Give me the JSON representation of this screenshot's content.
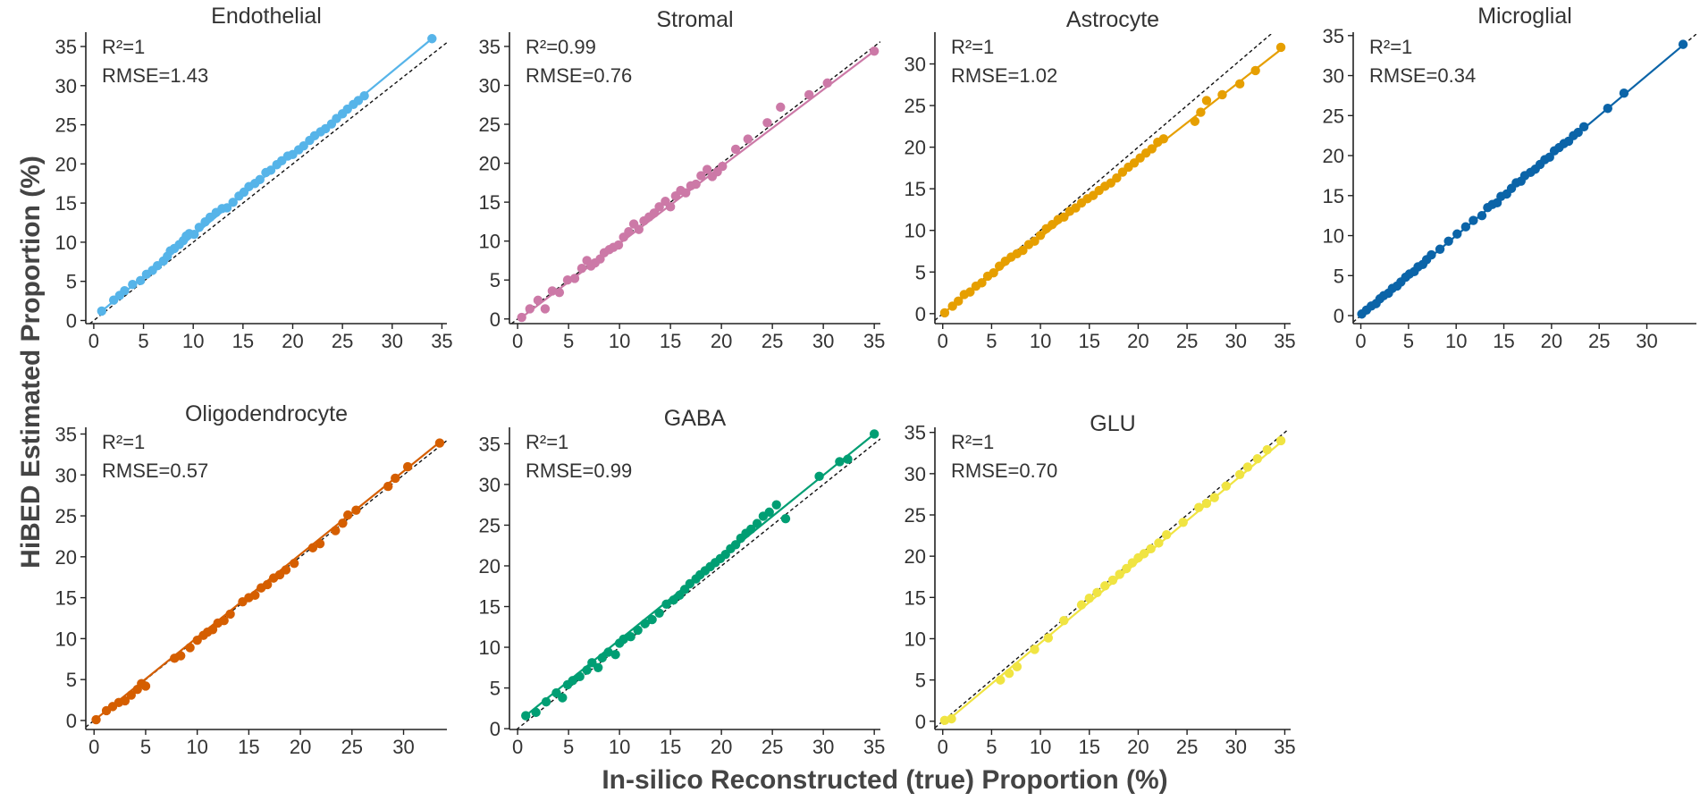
{
  "figure": {
    "ylabel": "HiBED Estimated Proportion (%)",
    "xlabel": "In-silico Reconstructed (true) Proportion (%)"
  },
  "chart_data": [
    {
      "type": "scatter",
      "title": "Endothelial",
      "color": "#56B4E9",
      "r2": "R²=1",
      "rmse": "RMSE=1.43",
      "xlim": [
        0,
        35
      ],
      "ylim": [
        0,
        35
      ],
      "xticks": [
        0,
        5,
        10,
        15,
        20,
        25,
        30,
        35
      ],
      "yticks": [
        0,
        5,
        10,
        15,
        20,
        25,
        30,
        35
      ],
      "fit": [
        [
          0.8,
          1.2
        ],
        [
          34,
          36
        ]
      ],
      "x": [
        0.8,
        2,
        2.6,
        3.1,
        3.9,
        4.7,
        5.3,
        5.9,
        6.4,
        7,
        7.4,
        7.7,
        8.1,
        8.6,
        9,
        9.3,
        9.6,
        10.1,
        10.6,
        11.2,
        11.7,
        12.3,
        12.9,
        13.4,
        14,
        14.6,
        15.1,
        15.6,
        16.2,
        16.7,
        17.3,
        17.8,
        18.4,
        18.9,
        19.5,
        20,
        20.6,
        21.1,
        21.7,
        22.2,
        22.8,
        23.3,
        23.9,
        24.4,
        25,
        25.5,
        26.1,
        26.6,
        27.2,
        34
      ],
      "y": [
        1.2,
        2.6,
        3.2,
        3.8,
        4.6,
        5.1,
        5.9,
        6.4,
        7,
        7.6,
        8.2,
        8.9,
        9.2,
        9.7,
        10.2,
        10.8,
        11.1,
        11,
        11.9,
        12.6,
        13.2,
        13.8,
        14.3,
        14.4,
        15.1,
        15.9,
        16.4,
        17.1,
        17.5,
        18,
        18.9,
        19.2,
        19.9,
        20.4,
        21,
        21.2,
        21.8,
        22.3,
        23,
        23.6,
        24.1,
        24.5,
        25.1,
        25.8,
        26.4,
        27,
        27.6,
        28.1,
        28.7,
        36
      ]
    },
    {
      "type": "scatter",
      "title": "Stromal",
      "color": "#CC79A7",
      "r2": "R²=0.99",
      "rmse": "RMSE=0.76",
      "xlim": [
        0,
        35
      ],
      "ylim": [
        0,
        35
      ],
      "xticks": [
        0,
        5,
        10,
        15,
        20,
        25,
        30,
        35
      ],
      "yticks": [
        0,
        5,
        10,
        15,
        20,
        25,
        30,
        35
      ],
      "fit": [
        [
          0.3,
          0.1
        ],
        [
          35,
          34.4
        ]
      ],
      "x": [
        0.4,
        1.2,
        2,
        2.7,
        3.4,
        4.1,
        4.9,
        5.6,
        6.3,
        6.8,
        7.2,
        7.6,
        8.1,
        8.5,
        9,
        9.4,
        9.9,
        10.4,
        10.9,
        11.4,
        11.9,
        12.4,
        12.9,
        13.4,
        13.9,
        14.5,
        15,
        15.5,
        16,
        16.5,
        17,
        17.5,
        18,
        18.6,
        19.1,
        19.6,
        20.1,
        21.4,
        22.6,
        24.5,
        25.8,
        28.6,
        30.4,
        35
      ],
      "y": [
        0.2,
        1.3,
        2.4,
        1.3,
        3.6,
        3.4,
        5,
        5.2,
        6.5,
        7.5,
        6.8,
        7.2,
        7.7,
        8.5,
        8.9,
        9.2,
        9.5,
        10.5,
        11.2,
        12.2,
        11.5,
        12.6,
        13.1,
        13.6,
        14.4,
        15.1,
        14.4,
        15.8,
        16.5,
        16.2,
        17.1,
        17.3,
        18.4,
        19.2,
        18.3,
        18.9,
        19.6,
        21.8,
        23.1,
        25.2,
        27.2,
        28.8,
        30.3,
        34.4
      ]
    },
    {
      "type": "scatter",
      "title": "Astrocyte",
      "color": "#E69F00",
      "r2": "R²=1",
      "rmse": "RMSE=1.02",
      "xlim": [
        0,
        35
      ],
      "ylim": [
        0,
        32
      ],
      "xticks": [
        0,
        5,
        10,
        15,
        20,
        25,
        30,
        35
      ],
      "yticks": [
        0,
        5,
        10,
        15,
        20,
        25,
        30
      ],
      "fit": [
        [
          0,
          0
        ],
        [
          35,
          32.1
        ]
      ],
      "x": [
        0.2,
        1,
        1.6,
        2.2,
        2.8,
        3.4,
        4,
        4.6,
        5.2,
        5.8,
        6.4,
        7,
        7.6,
        8.2,
        8.8,
        9.4,
        10,
        10.6,
        11.2,
        11.8,
        12.4,
        13,
        13.6,
        14.2,
        14.8,
        15.4,
        16,
        16.6,
        17.2,
        17.8,
        18.4,
        19,
        19.6,
        20.2,
        20.8,
        21.4,
        22,
        22.6,
        25.8,
        26.4,
        27,
        28.6,
        30.4,
        32,
        34.6
      ],
      "y": [
        0.1,
        0.9,
        1.5,
        2.3,
        2.6,
        3.3,
        3.7,
        4.5,
        4.9,
        5.7,
        6.3,
        6.8,
        7.2,
        7.6,
        8.3,
        8.7,
        9.4,
        10.2,
        10.7,
        11.3,
        11.6,
        12.3,
        12.7,
        13.3,
        13.8,
        14.2,
        14.8,
        15.3,
        15.7,
        16.3,
        17,
        17.6,
        18.1,
        18.7,
        19.3,
        19.8,
        20.6,
        21,
        23.1,
        24.2,
        25.6,
        26.3,
        27.6,
        29.2,
        32
      ]
    },
    {
      "type": "scatter",
      "title": "Microglial",
      "color": "#0B64A8",
      "r2": "R²=1",
      "rmse": "RMSE=0.34",
      "xlim": [
        0,
        35
      ],
      "ylim": [
        0,
        35
      ],
      "xticks": [
        0,
        5,
        10,
        15,
        20,
        25,
        30
      ],
      "yticks": [
        0,
        5,
        10,
        15,
        20,
        25,
        30,
        35
      ],
      "fit": [
        [
          0,
          0
        ],
        [
          33.8,
          33.8
        ]
      ],
      "x": [
        0.1,
        0.6,
        1.1,
        1.6,
        2,
        2.4,
        2.9,
        3.3,
        3.8,
        4.2,
        4.7,
        5.1,
        5.6,
        6,
        6.5,
        6.9,
        7.4,
        8.3,
        9.2,
        10.1,
        11,
        11.8,
        12.7,
        13.3,
        13.8,
        14.3,
        14.7,
        15.3,
        15.8,
        16.3,
        16.8,
        17.2,
        17.8,
        18.3,
        18.8,
        19.3,
        19.8,
        20.3,
        20.8,
        21.3,
        21.8,
        22.3,
        22.8,
        23.4,
        25.9,
        27.6,
        33.8
      ],
      "y": [
        0.2,
        0.7,
        1.2,
        1.5,
        2.1,
        2.5,
        2.8,
        3.4,
        3.7,
        4.2,
        4.8,
        5.2,
        5.5,
        6.1,
        6.4,
        7,
        7.6,
        8.3,
        9.3,
        10.2,
        11.1,
        11.9,
        12.5,
        13.5,
        13.9,
        14.1,
        14.9,
        15.2,
        15.9,
        16.6,
        16.8,
        17.5,
        17.9,
        18.3,
        18.9,
        19.5,
        19.8,
        20.6,
        21,
        21.5,
        21.8,
        22.5,
        22.9,
        23.6,
        25.9,
        27.8,
        33.9
      ]
    },
    {
      "type": "scatter",
      "title": "Oligodendrocyte",
      "color": "#D55E00",
      "r2": "R²=1",
      "rmse": "RMSE=0.57",
      "xlim": [
        0,
        34
      ],
      "ylim": [
        0,
        35
      ],
      "xticks": [
        0,
        5,
        10,
        15,
        20,
        25,
        30
      ],
      "yticks": [
        0,
        5,
        10,
        15,
        20,
        25,
        30,
        35
      ],
      "fit": [
        [
          0,
          0
        ],
        [
          33.5,
          34
        ]
      ],
      "x": [
        0.2,
        1.2,
        1.8,
        2.4,
        3,
        3.6,
        4.2,
        4.6,
        5,
        7.8,
        8.4,
        9.3,
        10,
        10.6,
        11,
        11.5,
        12,
        12.6,
        13.2,
        14.4,
        15,
        15.6,
        16.2,
        16.8,
        17.4,
        18,
        18.6,
        19.4,
        21.2,
        21.9,
        23.4,
        24.1,
        24.6,
        25.4,
        28.5,
        29.2,
        30.4,
        33.5
      ],
      "y": [
        0.1,
        1.2,
        1.7,
        2.2,
        2.4,
        3.1,
        3.8,
        4.5,
        4.2,
        7.6,
        7.9,
        8.9,
        9.8,
        10.4,
        10.8,
        11.1,
        11.9,
        12.2,
        13,
        14.5,
        15,
        15.3,
        16.2,
        16.6,
        17.4,
        17.8,
        18.4,
        19.2,
        21.1,
        21.6,
        23.2,
        24.1,
        25.1,
        25.7,
        28.6,
        29.6,
        31,
        33.9
      ]
    },
    {
      "type": "scatter",
      "title": "GABA",
      "color": "#009E73",
      "r2": "R²=1",
      "rmse": "RMSE=0.99",
      "xlim": [
        0,
        35
      ],
      "ylim": [
        0,
        36
      ],
      "xticks": [
        0,
        5,
        10,
        15,
        20,
        25,
        30,
        35
      ],
      "yticks": [
        0,
        5,
        10,
        15,
        20,
        25,
        30,
        35
      ],
      "fit": [
        [
          0.5,
          1.3
        ],
        [
          35,
          36.2
        ]
      ],
      "x": [
        0.8,
        1.8,
        2.8,
        3.8,
        4.4,
        4.9,
        5.4,
        6.1,
        6.8,
        7.3,
        7.9,
        8.3,
        8.9,
        9.6,
        10,
        10.4,
        11.1,
        11.8,
        12.5,
        13.2,
        13.9,
        14.6,
        15.3,
        15.9,
        16.4,
        16.9,
        17.5,
        17.9,
        18.4,
        18.9,
        19.4,
        19.9,
        20.4,
        20.9,
        21.4,
        21.9,
        22.4,
        22.9,
        23.5,
        24.1,
        24.7,
        25.4,
        26.3,
        29.6,
        31.6,
        32.4,
        35
      ],
      "y": [
        1.6,
        2,
        3.3,
        4.4,
        3.8,
        5.4,
        5.9,
        6.4,
        7.2,
        8.1,
        7.5,
        8.7,
        9.4,
        9.1,
        10.5,
        11,
        11.3,
        12.1,
        12.9,
        13.4,
        14.2,
        15.3,
        15.8,
        16.4,
        17.1,
        17.8,
        18.4,
        18.9,
        19.4,
        19.9,
        20.4,
        20.9,
        21.4,
        22.1,
        22.6,
        23.4,
        24,
        24.5,
        25.2,
        26.1,
        26.6,
        27.5,
        25.8,
        31,
        32.8,
        33.1,
        36.2
      ]
    },
    {
      "type": "scatter",
      "title": "GLU",
      "color": "#F0E442",
      "r2": "R²=1",
      "rmse": "RMSE=0.70",
      "xlim": [
        0,
        35
      ],
      "ylim": [
        0,
        35
      ],
      "xticks": [
        0,
        5,
        10,
        15,
        20,
        25,
        30,
        35
      ],
      "yticks": [
        0,
        5,
        10,
        15,
        20,
        25,
        30,
        35
      ],
      "fit": [
        [
          0,
          -0.4
        ],
        [
          34.6,
          33.8
        ]
      ],
      "x": [
        0.2,
        0.9,
        5.9,
        6.8,
        7.6,
        9.4,
        10.8,
        12.4,
        14.2,
        15,
        15.8,
        16.6,
        17.4,
        18.1,
        18.8,
        19.4,
        20,
        20.6,
        21.3,
        22.1,
        22.9,
        24.6,
        26.2,
        27,
        27.8,
        29,
        30.4,
        31.2,
        32.2,
        33.2,
        34.6
      ],
      "y": [
        0.1,
        0.3,
        5,
        5.8,
        6.6,
        8.7,
        10.1,
        12.2,
        14.1,
        14.9,
        15.6,
        16.4,
        17.1,
        17.8,
        18.5,
        19.2,
        19.8,
        20.3,
        20.9,
        21.6,
        22.6,
        24.1,
        25.9,
        26.4,
        27.1,
        28.5,
        29.9,
        30.8,
        31.8,
        32.9,
        34
      ]
    }
  ]
}
